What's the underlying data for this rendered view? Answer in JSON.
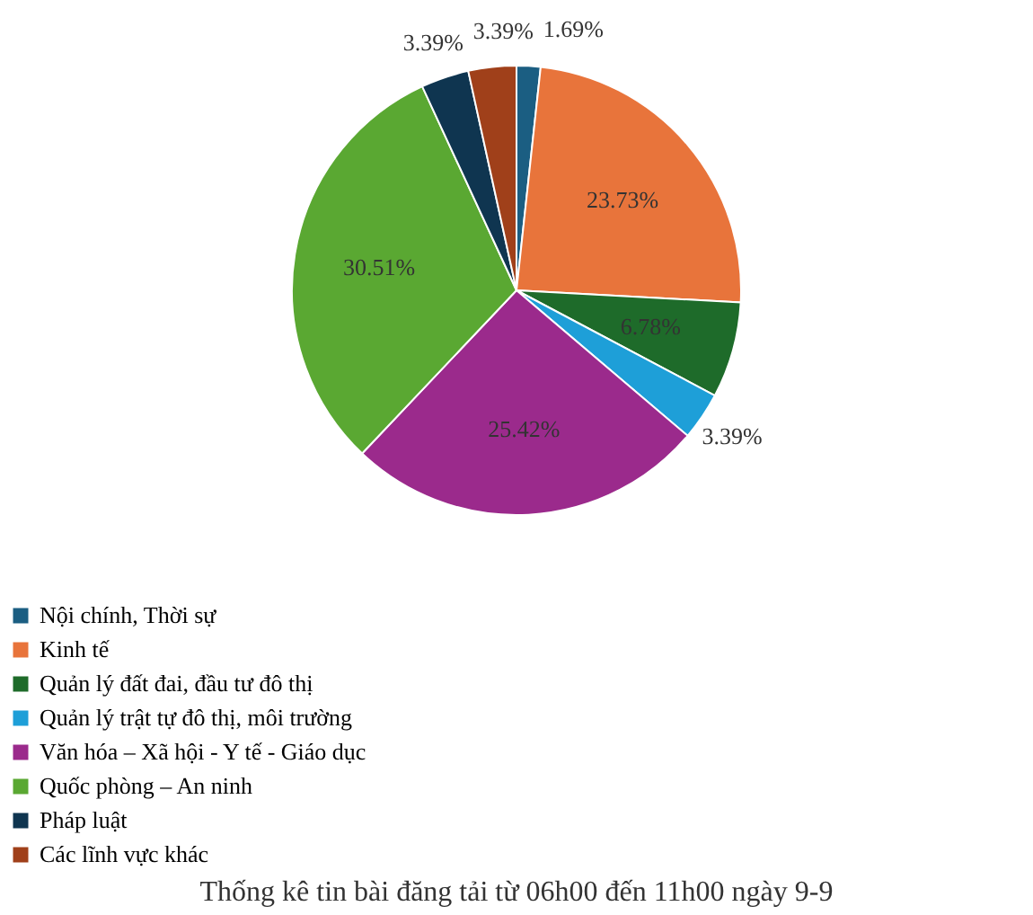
{
  "chart_data": {
    "type": "pie",
    "title": "Thống kê tin bài đăng tải từ 06h00 đến 11h00 ngày 9-9",
    "categories": [
      "Nội chính, Thời sự",
      "Kinh tế",
      "Quản lý đất đai, đầu tư đô thị",
      "Quản lý trật tự đô thị, môi trường",
      "Văn hóa – Xã hội - Y tế - Giáo dục",
      "Quốc phòng – An ninh",
      "Pháp luật",
      "Các lĩnh vực khác"
    ],
    "values": [
      1.69,
      23.73,
      6.78,
      3.39,
      25.42,
      30.51,
      3.39,
      3.39
    ],
    "value_labels": [
      "1.69%",
      "23.73%",
      "6.78%",
      "3.39%",
      "25.42%",
      "30.51%",
      "3.39%",
      "3.39%"
    ],
    "colors": [
      "#1b5e82",
      "#e8743b",
      "#1e6b2a",
      "#1e9fd8",
      "#9b2a8c",
      "#5aa832",
      "#0f3550",
      "#a0401a"
    ],
    "legend": "bottom"
  }
}
